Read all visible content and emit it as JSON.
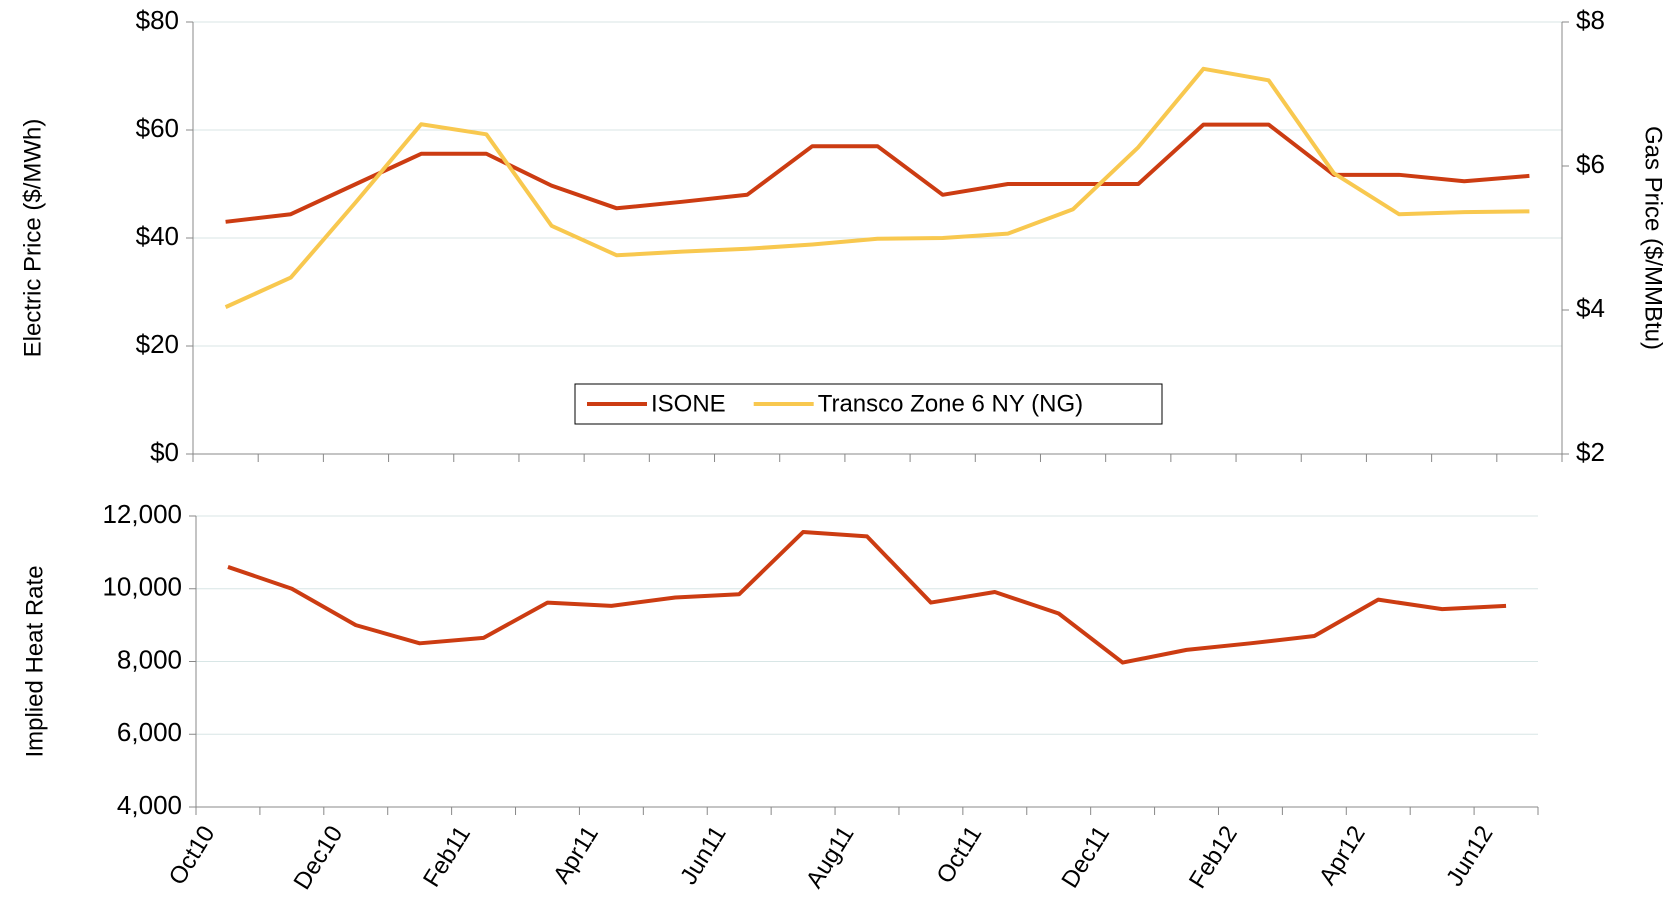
{
  "chart_data": [
    {
      "type": "line",
      "y_label": "Electric Price ($/MWh)",
      "y2_label": "Gas Price ($/MMBtu)",
      "categories": [
        null,
        null,
        null,
        null,
        null,
        null,
        null,
        null,
        null,
        null,
        null,
        null,
        null,
        null,
        null,
        null,
        null,
        null,
        null,
        null,
        null
      ],
      "series": [
        {
          "name": "ISONE",
          "color": "#cc3c12",
          "values": [
            43,
            44.4,
            50,
            55.6,
            55.6,
            49.7,
            45.5,
            46.7,
            48,
            57,
            57,
            48,
            50,
            50,
            50,
            61,
            61,
            51.7,
            51.7,
            50.5,
            51.5
          ]
        },
        {
          "name": "Transco Zone 6 NY (NG)",
          "color": "#f8c84f",
          "axis": "y2",
          "values": [
            4.04,
            4.45,
            5.5,
            6.58,
            6.44,
            5.17,
            4.76,
            4.81,
            4.85,
            4.91,
            4.99,
            5.0,
            5.06,
            5.4,
            6.26,
            7.35,
            7.19,
            5.9,
            5.33,
            5.36,
            5.37
          ]
        }
      ],
      "ylim": [
        0,
        80
      ],
      "yticks": [
        {
          "value": 0,
          "label": "$0"
        },
        {
          "value": 20,
          "label": "$20"
        },
        {
          "value": 40,
          "label": "$40"
        },
        {
          "value": 60,
          "label": "$60"
        },
        {
          "value": 80,
          "label": "$80"
        }
      ],
      "y2lim": [
        2,
        8
      ],
      "y2ticks": [
        {
          "value": 2,
          "label": "$2"
        },
        {
          "value": 4,
          "label": "$4"
        },
        {
          "value": 6,
          "label": "$6"
        },
        {
          "value": 8,
          "label": "$8"
        }
      ],
      "grid": true,
      "legend": "lower center"
    },
    {
      "type": "line",
      "y_label": "Implied Heat Rate",
      "categories": [
        "Oct10",
        null,
        "Dec10",
        null,
        "Feb11",
        null,
        "Apr11",
        null,
        "Jun11",
        null,
        "Aug11",
        null,
        "Oct11",
        null,
        "Dec11",
        null,
        "Feb12",
        null,
        "Apr12",
        null,
        "Jun12"
      ],
      "series": [
        {
          "name": "Implied Heat Rate",
          "color": "#cc3c12",
          "values": [
            10600,
            10000,
            9000,
            8500,
            8650,
            9620,
            9530,
            9760,
            9850,
            11560,
            11440,
            9620,
            9910,
            9320,
            7970,
            8320,
            8500,
            8700,
            9700,
            9440,
            9530
          ]
        }
      ],
      "ylim": [
        4000,
        12000
      ],
      "yticks": [
        {
          "value": 4000,
          "label": "4,000"
        },
        {
          "value": 6000,
          "label": "6,000"
        },
        {
          "value": 8000,
          "label": "8,000"
        },
        {
          "value": 10000,
          "label": "10,000"
        },
        {
          "value": 12000,
          "label": "12,000"
        }
      ],
      "grid": true
    }
  ]
}
